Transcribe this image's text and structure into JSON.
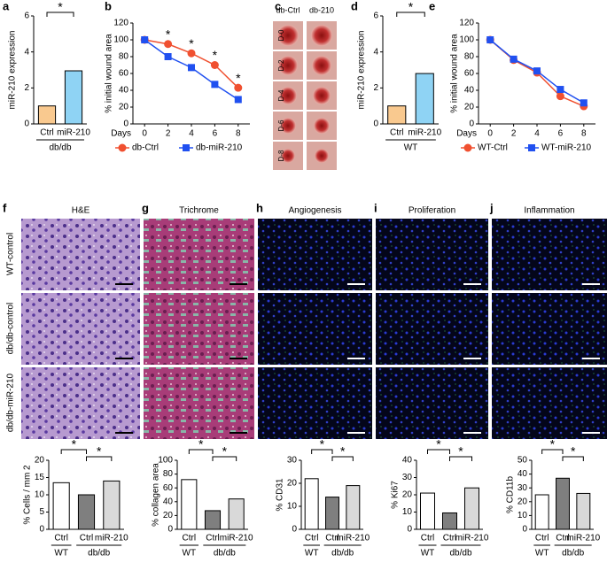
{
  "chart_data": [
    {
      "panel": "a",
      "type": "bar",
      "categories": [
        "Ctrl",
        "miR-210"
      ],
      "values": [
        1.0,
        2.95
      ],
      "colors": [
        "#f9c98f",
        "#8fd3f4"
      ],
      "ylabel": "miR-210 expression",
      "ylim": [
        0,
        6
      ],
      "yticks": [
        0,
        2,
        4,
        6
      ],
      "group_labels": [
        "db/db"
      ],
      "annotations": [
        "*"
      ]
    },
    {
      "panel": "b",
      "type": "line",
      "x": [
        0,
        2,
        4,
        6,
        8
      ],
      "xlabel": "Days",
      "ylabel": "% initial wound area",
      "xlim": [
        -1,
        9
      ],
      "xticks": [
        0,
        2,
        4,
        6,
        8
      ],
      "ylim": [
        0,
        120
      ],
      "yticks": [
        0,
        20,
        40,
        60,
        80,
        100,
        120
      ],
      "series": [
        {
          "name": "db-Ctrl",
          "color": "#f05030",
          "marker": "circle",
          "values": [
            100,
            95,
            84,
            70,
            43
          ]
        },
        {
          "name": "db-miR-210",
          "color": "#2050f0",
          "marker": "square",
          "values": [
            100,
            80,
            67,
            47,
            29
          ]
        }
      ],
      "annotations": [
        {
          "x": 2,
          "text": "*"
        },
        {
          "x": 4,
          "text": "*"
        },
        {
          "x": 6,
          "text": "*"
        },
        {
          "x": 8,
          "text": "*"
        }
      ]
    },
    {
      "panel": "d",
      "type": "bar",
      "categories": [
        "Ctrl",
        "miR-210"
      ],
      "values": [
        1.0,
        2.8
      ],
      "colors": [
        "#f9c98f",
        "#8fd3f4"
      ],
      "ylabel": "miR-210 expression",
      "ylim": [
        0,
        6
      ],
      "yticks": [
        0,
        2,
        4,
        6
      ],
      "group_labels": [
        "WT"
      ],
      "annotations": [
        "*"
      ]
    },
    {
      "panel": "e",
      "type": "line",
      "x": [
        0,
        2,
        4,
        6,
        8
      ],
      "xlabel": "Days",
      "ylabel": "% initial wound area",
      "xlim": [
        -1,
        9
      ],
      "xticks": [
        0,
        2,
        4,
        6,
        8
      ],
      "ylim": [
        0,
        120
      ],
      "yticks": [
        0,
        20,
        40,
        60,
        80,
        100,
        120
      ],
      "series": [
        {
          "name": "WT-Ctrl",
          "color": "#f05030",
          "marker": "circle",
          "values": [
            100,
            76,
            61,
            33,
            21
          ]
        },
        {
          "name": "WT-miR-210",
          "color": "#2050f0",
          "marker": "square",
          "values": [
            100,
            77,
            63,
            41,
            25
          ]
        }
      ],
      "annotations": []
    },
    {
      "type": "bar",
      "categories": [
        "Ctrl",
        "Ctrl",
        "miR-210"
      ],
      "values": [
        13.5,
        10,
        14
      ],
      "colors": [
        "#ffffff",
        "#7f7f7f",
        "#d9d9d9"
      ],
      "ylabel": "% Cells / mm 2",
      "ylim": [
        0,
        20
      ],
      "yticks": [
        0,
        5,
        10,
        15,
        20
      ],
      "group_labels": [
        "WT",
        "db/db"
      ],
      "annotations": [
        "*",
        "*"
      ]
    },
    {
      "type": "bar",
      "categories": [
        "Ctrl",
        "Ctrl",
        "miR-210"
      ],
      "values": [
        72,
        27,
        44
      ],
      "colors": [
        "#ffffff",
        "#7f7f7f",
        "#d9d9d9"
      ],
      "ylabel": "% collagen area",
      "ylim": [
        0,
        100
      ],
      "yticks": [
        0,
        20,
        40,
        60,
        80,
        100
      ],
      "group_labels": [
        "WT",
        "db/db"
      ],
      "annotations": [
        "*",
        "*"
      ]
    },
    {
      "type": "bar",
      "categories": [
        "Ctrl",
        "Ctrl",
        "miR-210"
      ],
      "values": [
        22,
        14,
        19
      ],
      "colors": [
        "#ffffff",
        "#7f7f7f",
        "#d9d9d9"
      ],
      "ylabel": "% CD31",
      "ylim": [
        0,
        30
      ],
      "yticks": [
        0,
        10,
        20,
        30
      ],
      "group_labels": [
        "WT",
        "db/db"
      ],
      "annotations": [
        "*",
        "*"
      ]
    },
    {
      "type": "bar",
      "categories": [
        "Ctrl",
        "Ctrl",
        "miR-210"
      ],
      "values": [
        21,
        9.5,
        24
      ],
      "colors": [
        "#ffffff",
        "#7f7f7f",
        "#d9d9d9"
      ],
      "ylabel": "% Ki67",
      "ylim": [
        0,
        40
      ],
      "yticks": [
        0,
        10,
        20,
        30,
        40
      ],
      "group_labels": [
        "WT",
        "db/db"
      ],
      "annotations": [
        "*",
        "*"
      ]
    },
    {
      "type": "bar",
      "categories": [
        "Ctrl",
        "Ctrl",
        "miR-210"
      ],
      "values": [
        25,
        37,
        26
      ],
      "colors": [
        "#ffffff",
        "#7f7f7f",
        "#d9d9d9"
      ],
      "ylabel": "% CD11b",
      "ylim": [
        0,
        50
      ],
      "yticks": [
        0,
        10,
        20,
        30,
        40,
        50
      ],
      "group_labels": [
        "WT",
        "db/db"
      ],
      "annotations": [
        "*",
        "*"
      ]
    }
  ],
  "wound_images": {
    "panel": "c",
    "columns": [
      "db-Ctrl",
      "db-210"
    ],
    "rows": [
      "D-0",
      "D-2",
      "D-4",
      "D-6",
      "D-8"
    ]
  },
  "histology": {
    "titles": [
      {
        "panel": "f",
        "label": "H&E"
      },
      {
        "panel": "g",
        "label": "Trichrome"
      },
      {
        "panel": "h",
        "label": "Angiogenesis"
      },
      {
        "panel": "i",
        "label": "Proliferation"
      },
      {
        "panel": "j",
        "label": "Inflammation"
      }
    ],
    "row_labels": [
      "WT-control",
      "db/db-control",
      "db/db-miR-210"
    ]
  }
}
